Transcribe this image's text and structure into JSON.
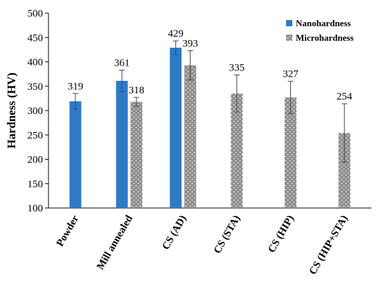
{
  "chart_data": {
    "type": "bar",
    "title": "",
    "xlabel": "",
    "ylabel": "Hardness (HV)",
    "ylim": [
      100,
      500
    ],
    "yticks": [
      100,
      150,
      200,
      250,
      300,
      350,
      400,
      450,
      500
    ],
    "grid": false,
    "legend_position": "top-right",
    "categories": [
      "Powder",
      "Mill annealed",
      "CS (AD)",
      "CS (STA)",
      "CS (HIP)",
      "CS (HIP+STA)"
    ],
    "series": [
      {
        "name": "Nanohardness",
        "color": "#2e7bc4",
        "pattern": "solid",
        "values": [
          319,
          361,
          429,
          null,
          null,
          null
        ],
        "errors": [
          16,
          22,
          14,
          null,
          null,
          null
        ]
      },
      {
        "name": "Microhardness",
        "color": "#8c8c8c",
        "pattern": "white-dotted",
        "values": [
          null,
          318,
          393,
          335,
          327,
          254
        ],
        "errors": [
          null,
          9,
          30,
          38,
          33,
          60
        ]
      }
    ],
    "data_labels": [
      [
        "319",
        "361",
        "429",
        "",
        "",
        ""
      ],
      [
        "",
        "318",
        "393",
        "335",
        "327",
        "254"
      ]
    ]
  }
}
